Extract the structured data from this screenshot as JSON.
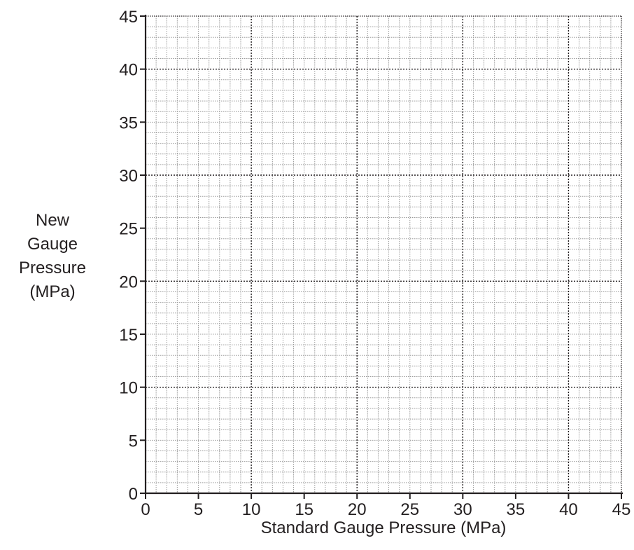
{
  "chart_data": {
    "type": "scatter",
    "title": "",
    "xlabel": "Standard Gauge Pressure (MPa)",
    "ylabel_lines": [
      "New",
      "Gauge",
      "Pressure",
      "(MPa)"
    ],
    "xlim": [
      0,
      45
    ],
    "ylim": [
      0,
      45
    ],
    "x_ticks": [
      0,
      5,
      10,
      15,
      20,
      25,
      30,
      35,
      40,
      45
    ],
    "y_ticks": [
      0,
      5,
      10,
      15,
      20,
      25,
      30,
      35,
      40,
      45
    ],
    "minor_grid_step": 1,
    "major_grid_step": 10,
    "grid": true,
    "series": []
  },
  "colors": {
    "axis": "#231f20",
    "grid_minor": "#9a9a9a",
    "grid_major": "#231f20"
  }
}
